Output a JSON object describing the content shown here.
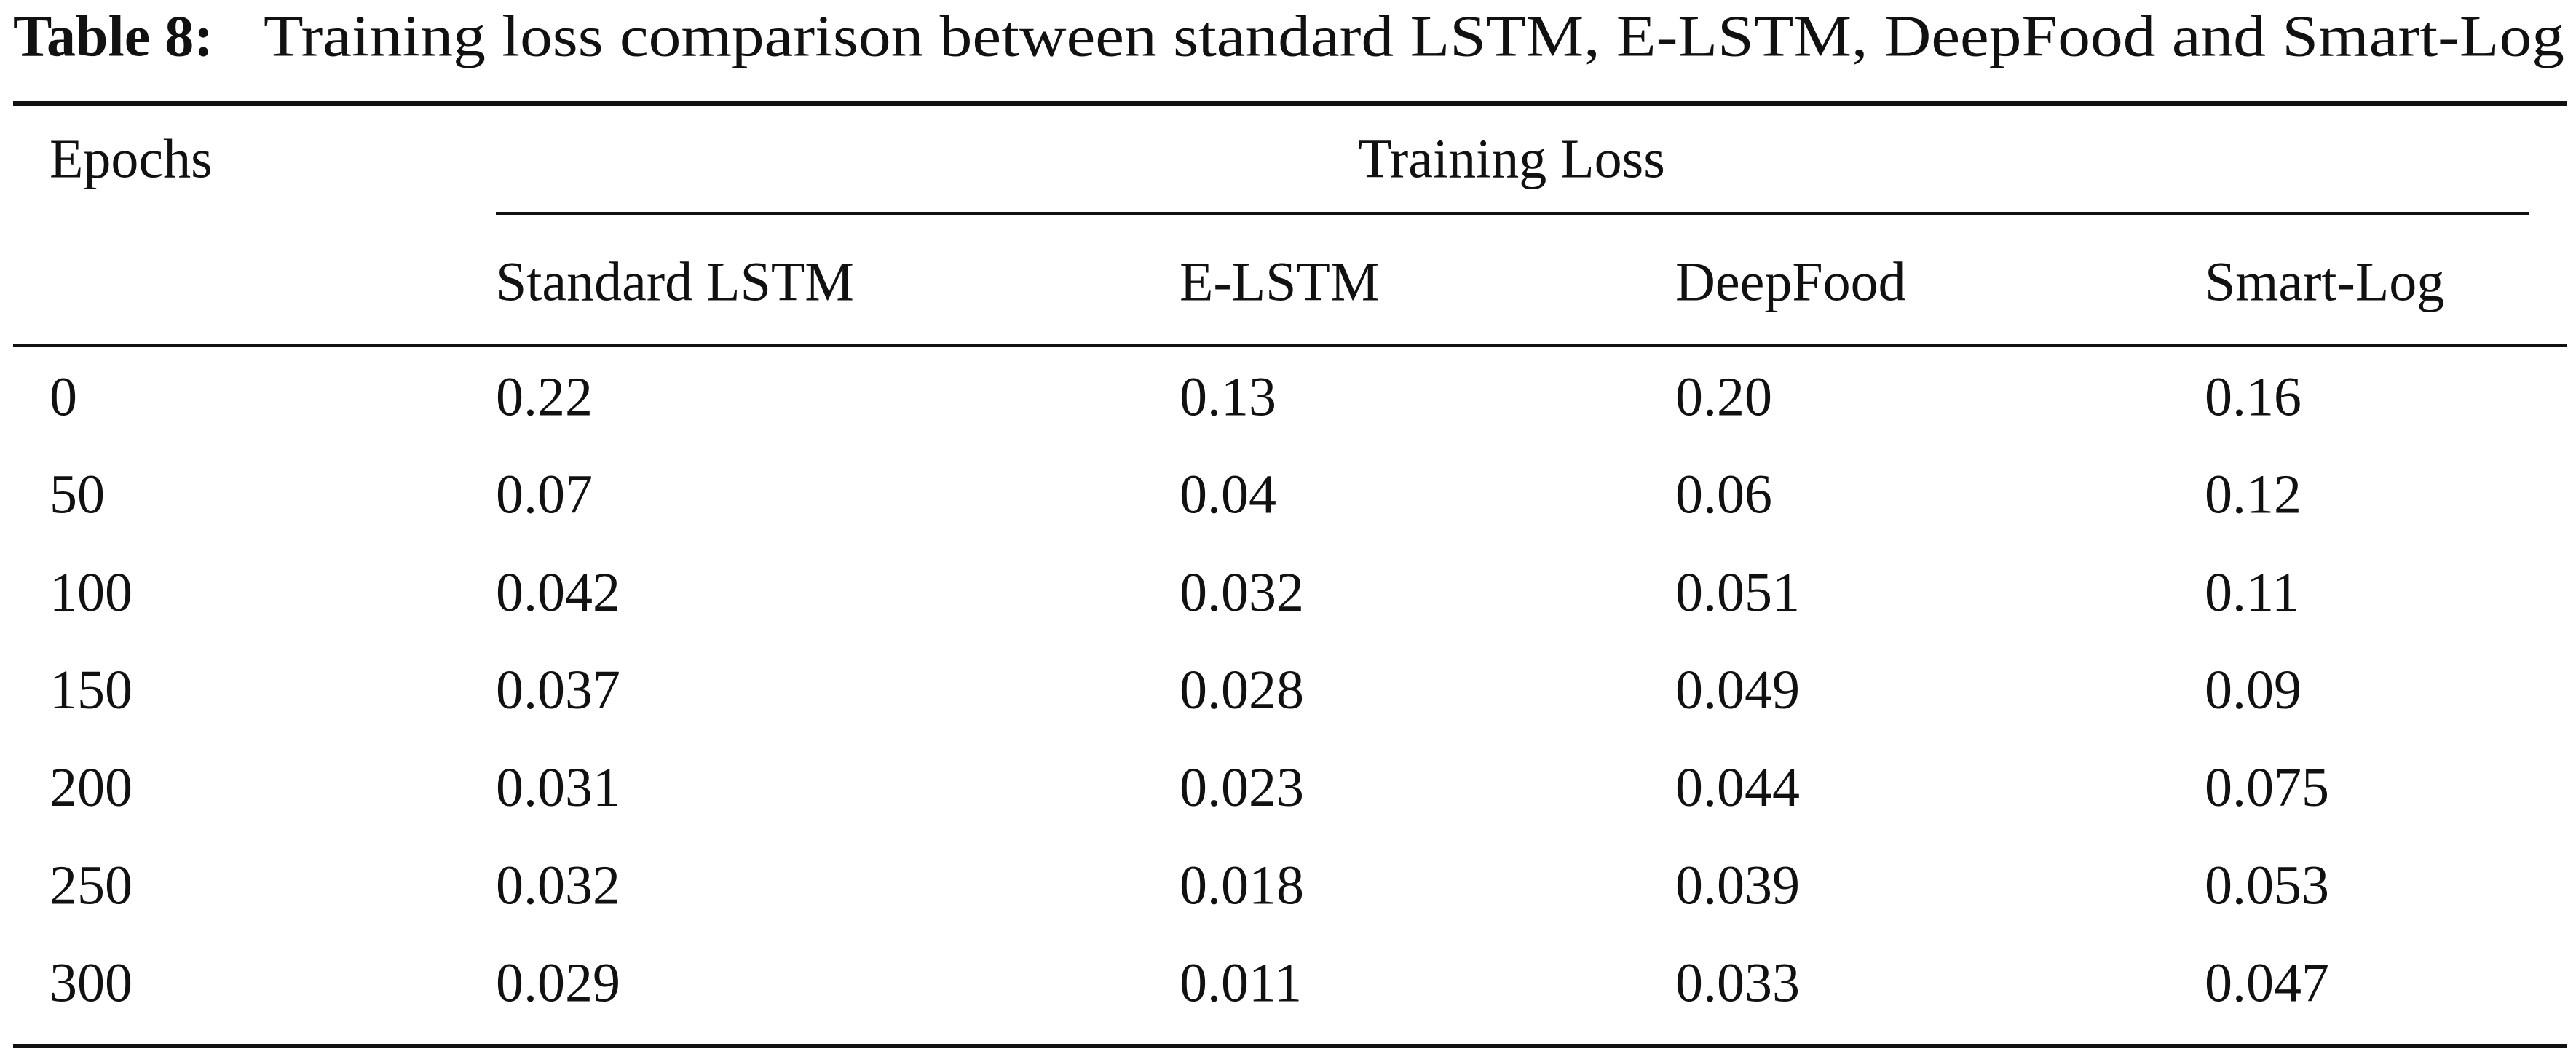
{
  "caption": {
    "label": "Table 8:",
    "text": "Training loss comparison between standard LSTM, E-LSTM, DeepFood and Smart-Log"
  },
  "table": {
    "header": {
      "epochs": "Epochs",
      "group": "Training Loss",
      "columns": [
        "Standard LSTM",
        "E-LSTM",
        "DeepFood",
        "Smart-Log"
      ]
    },
    "rows": [
      [
        "0",
        "0.22",
        "0.13",
        "0.20",
        "0.16"
      ],
      [
        "50",
        "0.07",
        "0.04",
        "0.06",
        "0.12"
      ],
      [
        "100",
        "0.042",
        "0.032",
        "0.051",
        "0.11"
      ],
      [
        "150",
        "0.037",
        "0.028",
        "0.049",
        "0.09"
      ],
      [
        "200",
        "0.031",
        "0.023",
        "0.044",
        "0.075"
      ],
      [
        "250",
        "0.032",
        "0.018",
        "0.039",
        "0.053"
      ],
      [
        "300",
        "0.029",
        "0.011",
        "0.033",
        "0.047"
      ]
    ]
  }
}
